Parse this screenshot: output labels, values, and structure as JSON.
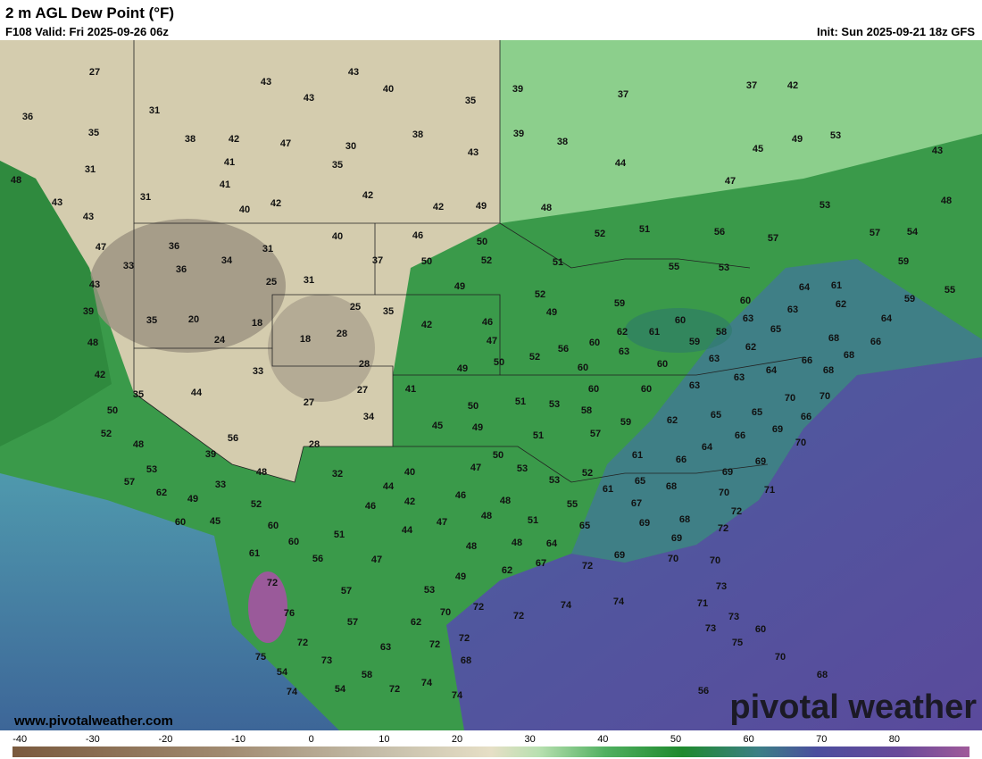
{
  "header": {
    "title": "2 m AGL Dew Point (°F)",
    "valid": "F108 Valid: Fri 2025-09-26 06z",
    "init": "Init: Sun 2025-09-21 18z GFS"
  },
  "map": {
    "station_values": [
      27,
      43,
      43,
      40,
      43,
      35,
      39,
      37,
      37,
      42,
      36,
      31,
      35,
      38,
      42,
      47,
      30,
      38,
      39,
      38,
      43,
      35,
      41,
      31,
      44,
      45,
      49,
      53,
      43,
      48,
      41,
      31,
      42,
      42,
      40,
      42,
      49,
      48,
      47,
      53,
      48,
      43,
      43,
      47,
      36,
      31,
      40,
      46,
      50,
      52,
      51,
      56,
      57,
      57,
      54,
      33,
      36,
      34,
      37,
      50,
      52,
      51,
      55,
      53,
      59,
      43,
      25,
      31,
      49,
      52,
      59,
      60,
      64,
      61,
      62,
      59,
      55,
      39,
      35,
      20,
      18,
      25,
      35,
      46,
      49,
      60,
      63,
      63,
      65,
      64,
      48,
      24,
      18,
      28,
      42,
      47,
      60,
      62,
      61,
      59,
      58,
      62,
      68,
      66,
      63,
      63,
      68,
      52,
      56,
      28,
      49,
      50,
      60,
      60,
      64,
      66,
      68,
      42,
      33,
      35,
      44,
      27,
      41,
      60,
      60,
      63,
      63,
      70,
      70,
      27,
      50,
      51,
      53,
      58,
      50,
      34,
      45,
      49,
      59,
      62,
      65,
      65,
      66,
      52,
      51,
      57,
      69,
      70,
      56,
      28,
      48,
      64,
      66,
      39,
      50,
      61,
      66,
      69,
      53,
      48,
      32,
      40,
      47,
      53,
      52,
      69,
      57,
      33,
      44,
      53,
      65,
      68,
      71,
      62,
      49,
      52,
      46,
      42,
      46,
      48,
      55,
      61,
      67,
      70,
      60,
      45,
      60,
      47,
      48,
      51,
      65,
      69,
      68,
      72,
      51,
      44,
      60,
      48,
      48,
      64,
      69,
      72,
      61,
      56,
      47,
      69,
      70,
      70,
      67,
      62,
      49,
      72,
      72,
      57,
      53,
      73,
      76,
      70,
      72,
      72,
      74,
      74,
      71,
      73,
      57,
      62,
      72,
      72,
      73,
      60,
      63,
      72,
      75,
      70,
      75,
      73,
      68,
      54,
      58,
      74,
      68,
      74,
      54,
      72,
      74,
      56
    ]
  },
  "colorbar": {
    "lim": [
      -41,
      90.3
    ],
    "ticks": [
      -40,
      -30,
      -20,
      -10,
      0,
      10,
      20,
      30,
      40,
      50,
      60,
      70,
      80
    ]
  },
  "footer": {
    "url": "www.pivotalweather.com",
    "logo": "pivotal weather"
  }
}
